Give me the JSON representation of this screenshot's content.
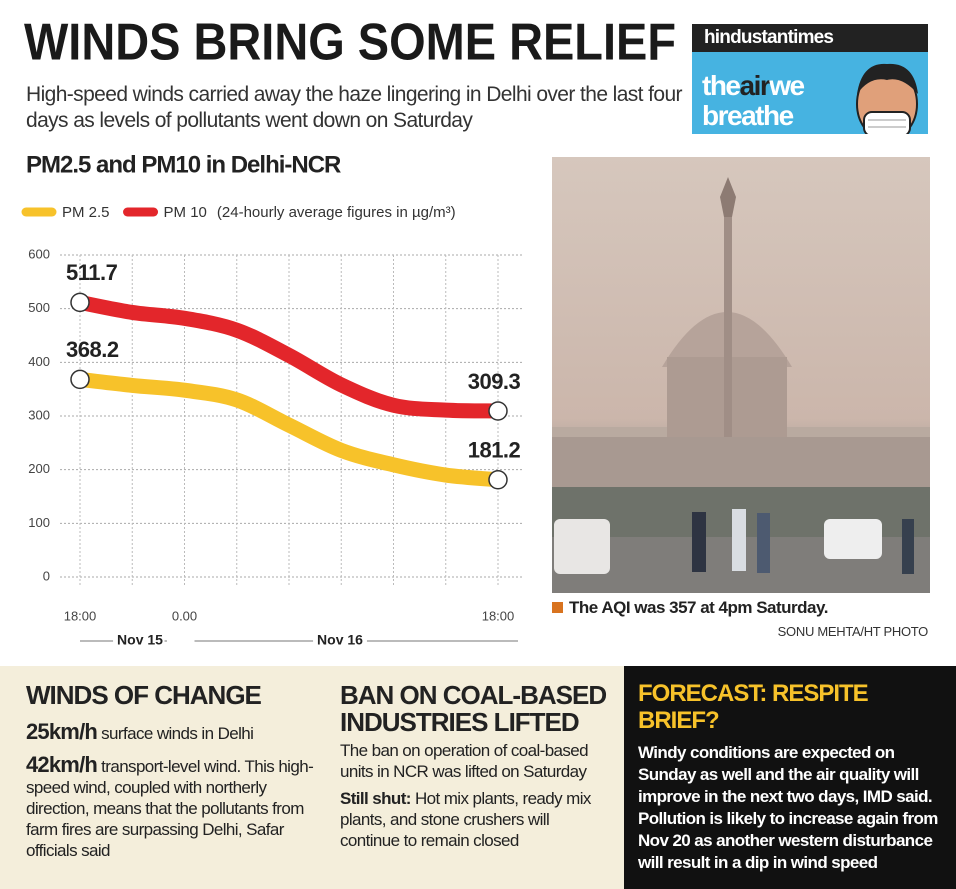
{
  "header": {
    "title": "WINDS BRING SOME RELIEF",
    "subtitle": "High-speed winds carried away the haze lingering in Delhi over the last four days as levels of pollutants went down on Saturday"
  },
  "logo": {
    "brand": "hindustantimes",
    "line1": [
      "the",
      "air",
      "we"
    ],
    "line2": "breathe"
  },
  "chart_data": {
    "type": "line",
    "title": "PM2.5 and PM10 in Delhi-NCR",
    "unit_note": "(24-hourly average figures in µg/m³)",
    "categories": [
      "18:00",
      null,
      "0.00",
      null,
      null,
      null,
      null,
      null,
      "18:00"
    ],
    "x_groups": [
      "Nov 15",
      "Nov 16"
    ],
    "series": [
      {
        "name": "PM 2.5",
        "color": "#f7c22a",
        "values": [
          368.2,
          357,
          348,
          330,
          283,
          236,
          209,
          190,
          181.2
        ]
      },
      {
        "name": "PM 10",
        "color": "#e3262b",
        "values": [
          511.7,
          493,
          482,
          460,
          413,
          358,
          320,
          311,
          309.3
        ]
      }
    ],
    "ylim": [
      0,
      600
    ],
    "yticks": [
      0,
      100,
      200,
      300,
      400,
      500,
      600
    ],
    "grid": true
  },
  "photo": {
    "caption": "The AQI was 357 at 4pm Saturday.",
    "credit": "SONU MEHTA/HT PHOTO"
  },
  "panels": {
    "winds": {
      "title": "WINDS OF CHANGE",
      "items": [
        {
          "lead": "25km/h",
          "text": " surface winds in Delhi"
        },
        {
          "lead": "42km/h",
          "text": " transport-level wind. This high-speed wind, coupled with northerly direction, means that the pollutants from farm fires are surpassing Delhi, Safar officials said"
        }
      ]
    },
    "ban": {
      "title": "BAN ON COAL-BASED INDUSTRIES LIFTED",
      "text": "The ban on operation of coal-based units in NCR was lifted on Saturday",
      "lead": "Still shut:",
      "lead_text": " Hot mix plants, ready mix plants, and stone crushers will continue to remain closed"
    },
    "forecast": {
      "title": "FORECAST: RESPITE BRIEF?",
      "text": "Windy conditions are expected on Sunday as well and the air quality will improve in the next two days, IMD said. Pollution is likely to increase again from Nov 20 as another western disturbance will result in a dip in wind speed"
    }
  }
}
